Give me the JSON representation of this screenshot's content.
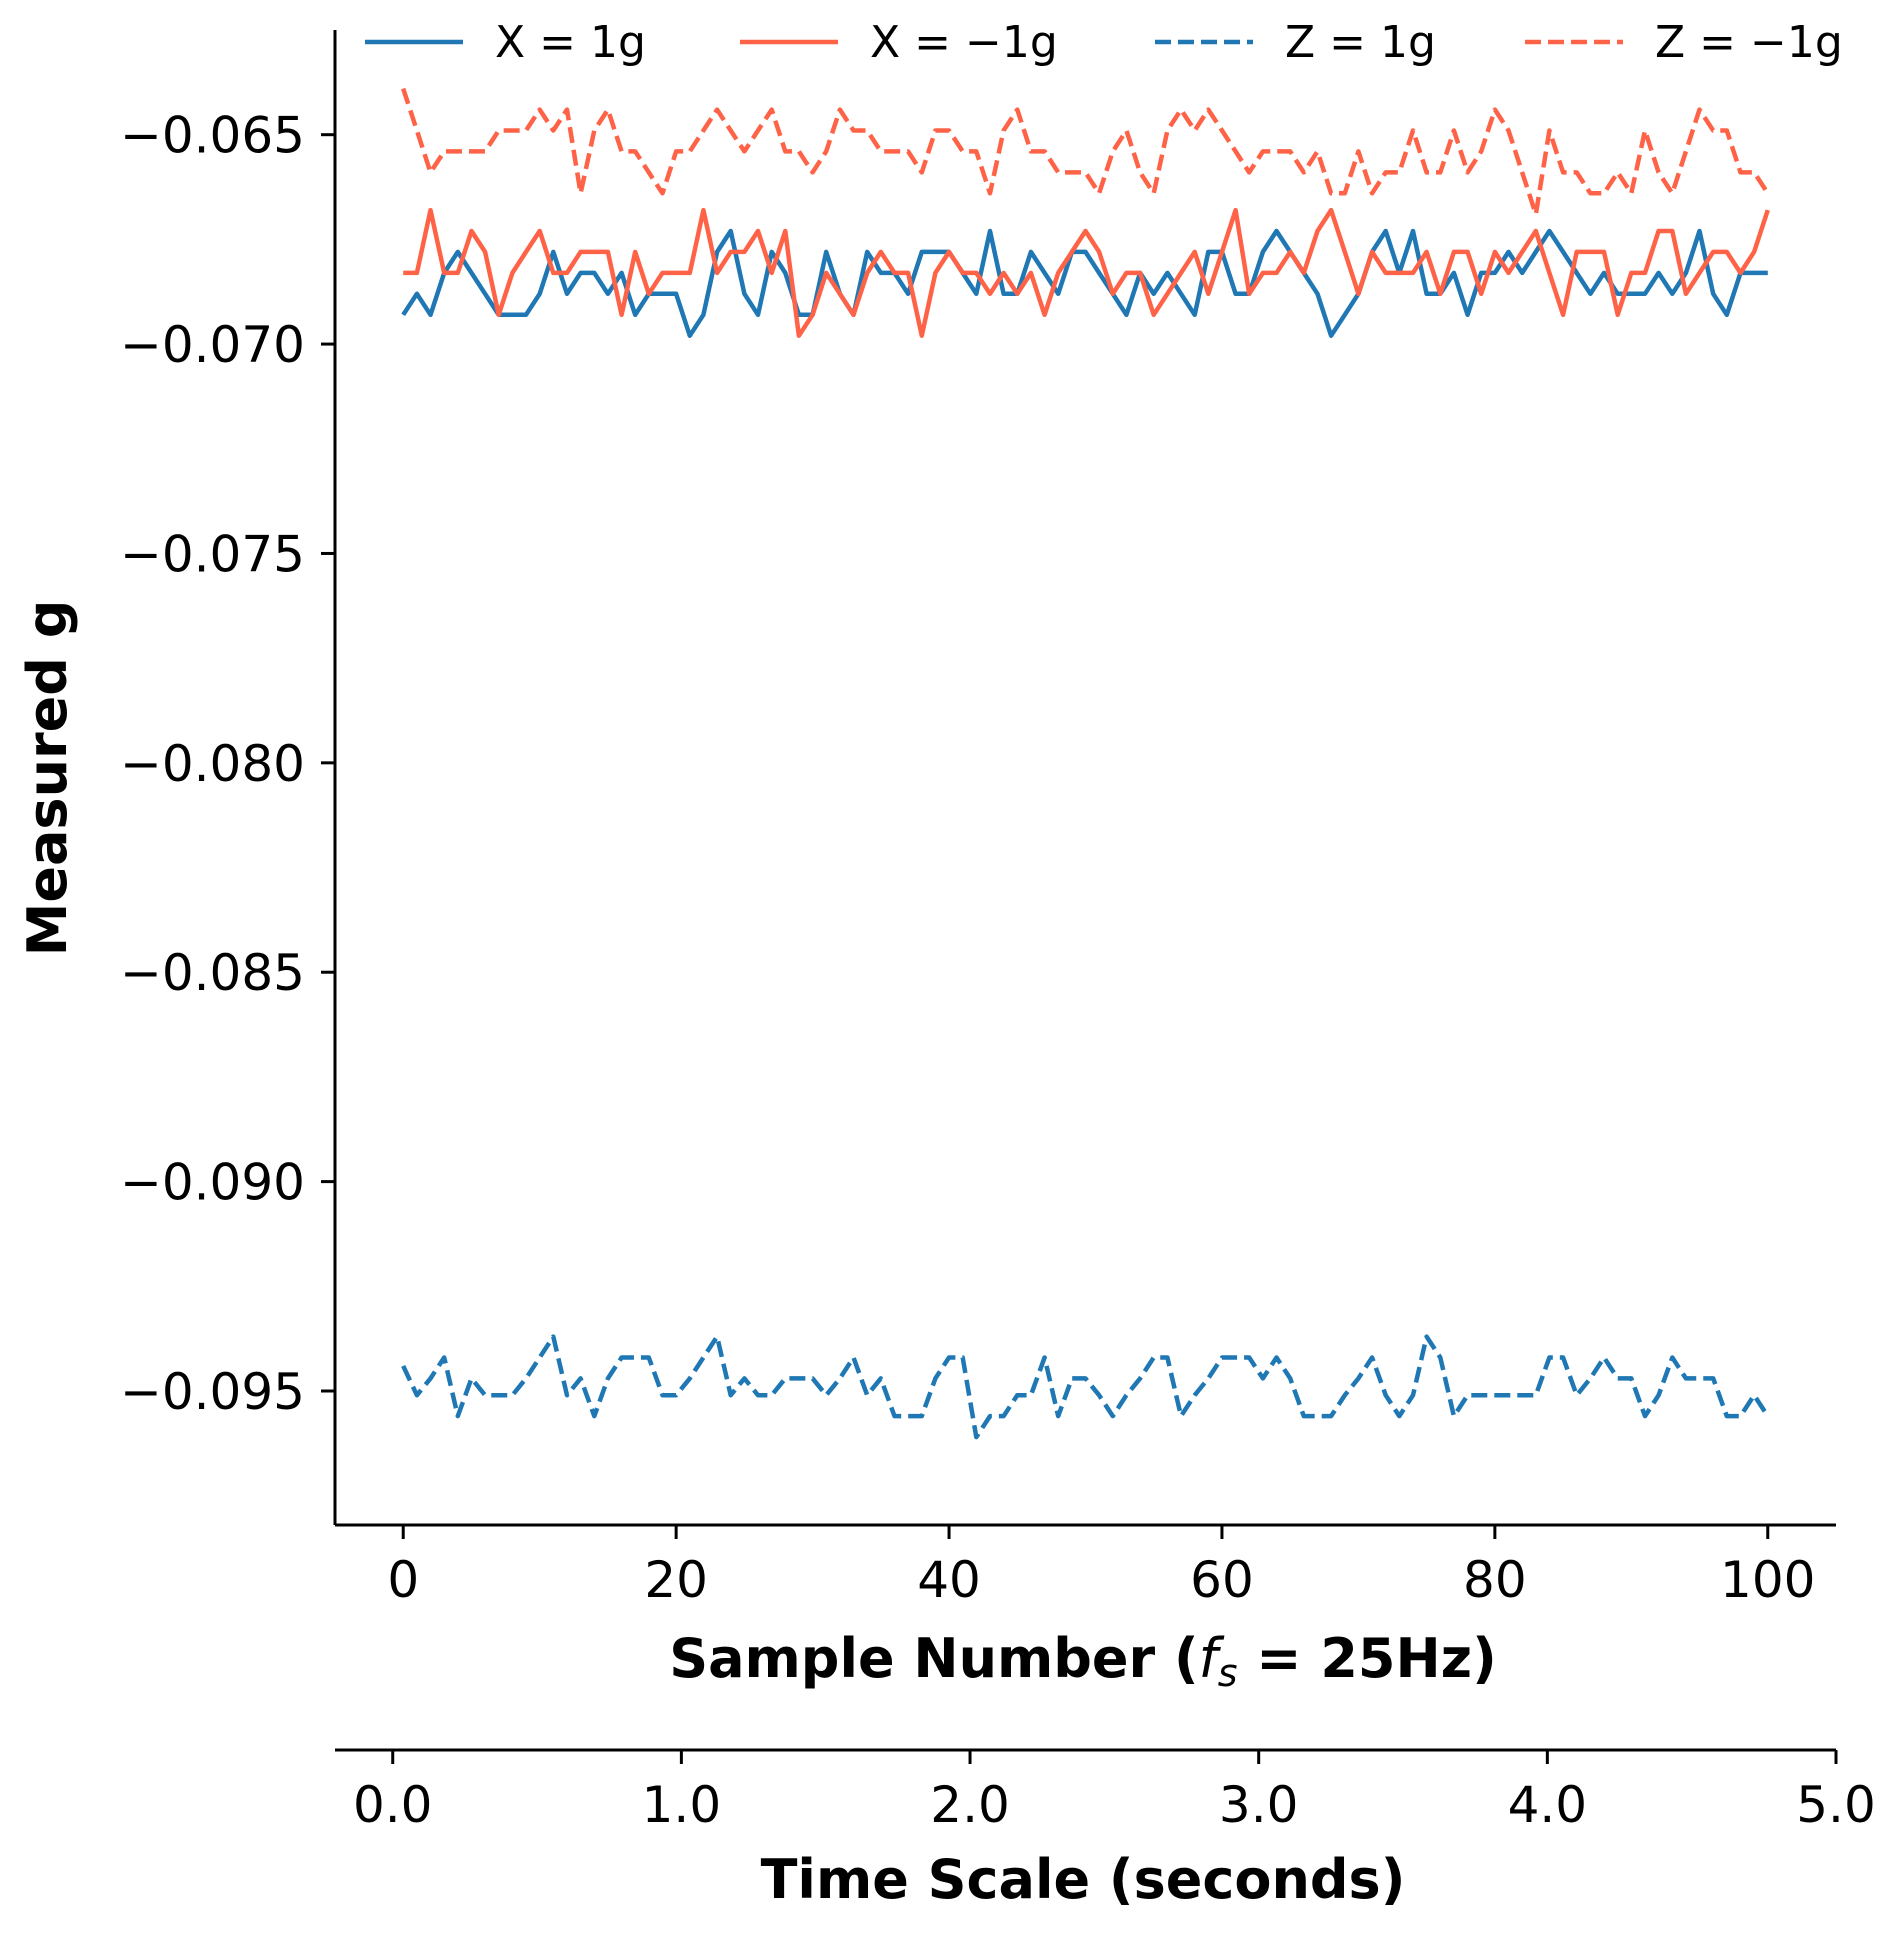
{
  "chart_data": {
    "type": "line",
    "ylabel": "Measured g",
    "xlabel": {
      "prefix": "Sample Number (",
      "f": "f",
      "sub": "s",
      "suffix": " = 25Hz)"
    },
    "x2label": "Time Scale (seconds)",
    "xlim": [
      -5,
      105
    ],
    "ylim": [
      -0.0982,
      -0.0625
    ],
    "xticks": [
      0,
      20,
      40,
      60,
      80,
      100
    ],
    "xtick_labels": [
      "0",
      "20",
      "40",
      "60",
      "80",
      "100"
    ],
    "yticks": [
      -0.065,
      -0.07,
      -0.075,
      -0.08,
      -0.085,
      -0.09,
      -0.095
    ],
    "ytick_labels": [
      "−0.065",
      "−0.070",
      "−0.075",
      "−0.080",
      "−0.085",
      "−0.090",
      "−0.095"
    ],
    "x2lim": [
      -0.2,
      5.0
    ],
    "x2ticks": [
      0.0,
      1.0,
      2.0,
      3.0,
      4.0,
      5.0
    ],
    "x2tick_labels": [
      "0.0",
      "1.0",
      "2.0",
      "3.0",
      "4.0",
      "5.0"
    ],
    "legend_position": "top",
    "grid": false,
    "x": [
      0,
      1,
      2,
      3,
      4,
      5,
      6,
      7,
      8,
      9,
      10,
      11,
      12,
      13,
      14,
      15,
      16,
      17,
      18,
      19,
      20,
      21,
      22,
      23,
      24,
      25,
      26,
      27,
      28,
      29,
      30,
      31,
      32,
      33,
      34,
      35,
      36,
      37,
      38,
      39,
      40,
      41,
      42,
      43,
      44,
      45,
      46,
      47,
      48,
      49,
      50,
      51,
      52,
      53,
      54,
      55,
      56,
      57,
      58,
      59,
      60,
      61,
      62,
      63,
      64,
      65,
      66,
      67,
      68,
      69,
      70,
      71,
      72,
      73,
      74,
      75,
      76,
      77,
      78,
      79,
      80,
      81,
      82,
      83,
      84,
      85,
      86,
      87,
      88,
      89,
      90,
      91,
      92,
      93,
      94,
      95,
      96,
      97,
      98,
      99,
      100
    ],
    "series": [
      {
        "name": "X = 1g",
        "color": "#1f77b4",
        "dash": "solid",
        "values": [
          -0.0693,
          -0.0688,
          -0.0693,
          -0.0683,
          -0.0678,
          -0.0683,
          -0.0688,
          -0.0693,
          -0.0693,
          -0.0693,
          -0.0688,
          -0.0678,
          -0.0688,
          -0.0683,
          -0.0683,
          -0.0688,
          -0.0683,
          -0.0693,
          -0.0688,
          -0.0688,
          -0.0688,
          -0.0698,
          -0.0693,
          -0.0678,
          -0.0673,
          -0.0688,
          -0.0693,
          -0.0678,
          -0.0683,
          -0.0693,
          -0.0693,
          -0.0678,
          -0.0688,
          -0.0693,
          -0.0678,
          -0.0683,
          -0.0683,
          -0.0688,
          -0.0678,
          -0.0678,
          -0.0678,
          -0.0683,
          -0.0688,
          -0.0673,
          -0.0688,
          -0.0688,
          -0.0678,
          -0.0683,
          -0.0688,
          -0.0678,
          -0.0678,
          -0.0683,
          -0.0688,
          -0.0693,
          -0.0683,
          -0.0688,
          -0.0683,
          -0.0688,
          -0.0693,
          -0.0678,
          -0.0678,
          -0.0688,
          -0.0688,
          -0.0678,
          -0.0673,
          -0.0678,
          -0.0683,
          -0.0688,
          -0.0698,
          -0.0693,
          -0.0688,
          -0.0678,
          -0.0673,
          -0.0683,
          -0.0673,
          -0.0688,
          -0.0688,
          -0.0683,
          -0.0693,
          -0.0683,
          -0.0683,
          -0.0678,
          -0.0683,
          -0.0678,
          -0.0673,
          -0.0678,
          -0.0683,
          -0.0688,
          -0.0683,
          -0.0688,
          -0.0688,
          -0.0688,
          -0.0683,
          -0.0688,
          -0.0683,
          -0.0673,
          -0.0688,
          -0.0693,
          -0.0683,
          -0.0683,
          -0.0683
        ]
      },
      {
        "name": "X = −1g",
        "color": "#ff6347",
        "dash": "solid",
        "values": [
          -0.0683,
          -0.0683,
          -0.0668,
          -0.0683,
          -0.0683,
          -0.0673,
          -0.0678,
          -0.0693,
          -0.0683,
          -0.0678,
          -0.0673,
          -0.0683,
          -0.0683,
          -0.0678,
          -0.0678,
          -0.0678,
          -0.0693,
          -0.0678,
          -0.0688,
          -0.0683,
          -0.0683,
          -0.0683,
          -0.0668,
          -0.0683,
          -0.0678,
          -0.0678,
          -0.0673,
          -0.0683,
          -0.0673,
          -0.0698,
          -0.0693,
          -0.0683,
          -0.0688,
          -0.0693,
          -0.0683,
          -0.0678,
          -0.0683,
          -0.0683,
          -0.0698,
          -0.0683,
          -0.0678,
          -0.0683,
          -0.0683,
          -0.0688,
          -0.0683,
          -0.0688,
          -0.0683,
          -0.0693,
          -0.0683,
          -0.0678,
          -0.0673,
          -0.0678,
          -0.0688,
          -0.0683,
          -0.0683,
          -0.0693,
          -0.0688,
          -0.0683,
          -0.0678,
          -0.0688,
          -0.0678,
          -0.0668,
          -0.0688,
          -0.0683,
          -0.0683,
          -0.0678,
          -0.0683,
          -0.0673,
          -0.0668,
          -0.0678,
          -0.0688,
          -0.0678,
          -0.0683,
          -0.0683,
          -0.0683,
          -0.0678,
          -0.0688,
          -0.0678,
          -0.0678,
          -0.0688,
          -0.0678,
          -0.0683,
          -0.0678,
          -0.0673,
          -0.0683,
          -0.0693,
          -0.0678,
          -0.0678,
          -0.0678,
          -0.0693,
          -0.0683,
          -0.0683,
          -0.0673,
          -0.0673,
          -0.0688,
          -0.0683,
          -0.0678,
          -0.0678,
          -0.0683,
          -0.0678,
          -0.0668
        ]
      },
      {
        "name": "Z = 1g",
        "color": "#1f77b4",
        "dash": "dashed",
        "values": [
          -0.0944,
          -0.0951,
          -0.0947,
          -0.0942,
          -0.0956,
          -0.0947,
          -0.0951,
          -0.0951,
          -0.0951,
          -0.0947,
          -0.0942,
          -0.0937,
          -0.0951,
          -0.0947,
          -0.0956,
          -0.0947,
          -0.0942,
          -0.0942,
          -0.0942,
          -0.0951,
          -0.0951,
          -0.0947,
          -0.0942,
          -0.0937,
          -0.0951,
          -0.0947,
          -0.0951,
          -0.0951,
          -0.0947,
          -0.0947,
          -0.0947,
          -0.0951,
          -0.0947,
          -0.0942,
          -0.0951,
          -0.0947,
          -0.0956,
          -0.0956,
          -0.0956,
          -0.0947,
          -0.0942,
          -0.0942,
          -0.0961,
          -0.0956,
          -0.0956,
          -0.0951,
          -0.0951,
          -0.0942,
          -0.0956,
          -0.0947,
          -0.0947,
          -0.0951,
          -0.0956,
          -0.0951,
          -0.0947,
          -0.0942,
          -0.0942,
          -0.0956,
          -0.0951,
          -0.0947,
          -0.0942,
          -0.0942,
          -0.0942,
          -0.0947,
          -0.0942,
          -0.0947,
          -0.0956,
          -0.0956,
          -0.0956,
          -0.0951,
          -0.0947,
          -0.0942,
          -0.0951,
          -0.0956,
          -0.0951,
          -0.0937,
          -0.0942,
          -0.0956,
          -0.0951,
          -0.0951,
          -0.0951,
          -0.0951,
          -0.0951,
          -0.0951,
          -0.0942,
          -0.0942,
          -0.0951,
          -0.0947,
          -0.0942,
          -0.0947,
          -0.0947,
          -0.0956,
          -0.0951,
          -0.0942,
          -0.0947,
          -0.0947,
          -0.0947,
          -0.0956,
          -0.0956,
          -0.0951,
          -0.0956
        ]
      },
      {
        "name": "Z = −1g",
        "color": "#ff6347",
        "dash": "dashed",
        "values": [
          -0.0639,
          -0.0649,
          -0.0659,
          -0.0654,
          -0.0654,
          -0.0654,
          -0.0654,
          -0.0649,
          -0.0649,
          -0.0649,
          -0.0644,
          -0.0649,
          -0.0644,
          -0.0664,
          -0.0649,
          -0.0644,
          -0.0654,
          -0.0654,
          -0.0659,
          -0.0664,
          -0.0654,
          -0.0654,
          -0.0649,
          -0.0644,
          -0.0649,
          -0.0654,
          -0.0649,
          -0.0644,
          -0.0654,
          -0.0654,
          -0.0659,
          -0.0654,
          -0.0644,
          -0.0649,
          -0.0649,
          -0.0654,
          -0.0654,
          -0.0654,
          -0.0659,
          -0.0649,
          -0.0649,
          -0.0654,
          -0.0654,
          -0.0664,
          -0.0649,
          -0.0644,
          -0.0654,
          -0.0654,
          -0.0659,
          -0.0659,
          -0.0659,
          -0.0664,
          -0.0654,
          -0.0649,
          -0.0659,
          -0.0664,
          -0.0649,
          -0.0644,
          -0.0649,
          -0.0644,
          -0.0649,
          -0.0654,
          -0.0659,
          -0.0654,
          -0.0654,
          -0.0654,
          -0.0659,
          -0.0654,
          -0.0664,
          -0.0664,
          -0.0654,
          -0.0664,
          -0.0659,
          -0.0659,
          -0.0649,
          -0.0659,
          -0.0659,
          -0.0649,
          -0.0659,
          -0.0654,
          -0.0644,
          -0.0649,
          -0.0659,
          -0.0669,
          -0.0649,
          -0.0659,
          -0.0659,
          -0.0664,
          -0.0664,
          -0.0659,
          -0.0664,
          -0.0649,
          -0.0659,
          -0.0664,
          -0.0654,
          -0.0644,
          -0.0649,
          -0.0649,
          -0.0659,
          -0.0659,
          -0.0664
        ]
      }
    ]
  }
}
